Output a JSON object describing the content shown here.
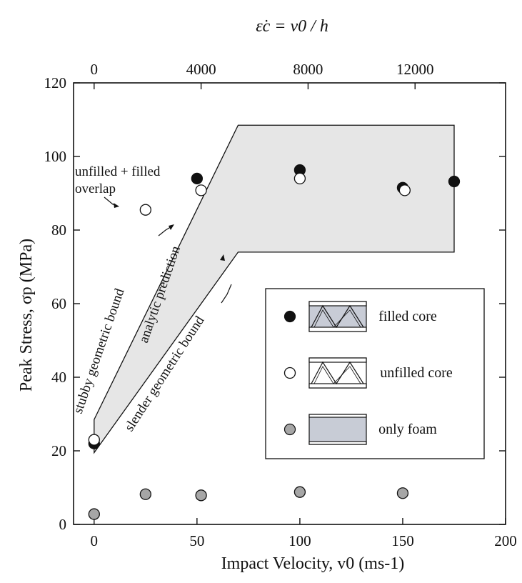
{
  "chart_data": {
    "type": "scatter",
    "xlabel": "Impact Velocity, v0 (ms-1)",
    "ylabel": "Peak Stress, σp (MPa)",
    "top_axis_label": "ε̇c = v0 / h",
    "xlim": [
      -10,
      200
    ],
    "ylim": [
      0,
      120
    ],
    "x_ticks": [
      0,
      50,
      100,
      150,
      200
    ],
    "y_ticks": [
      0,
      20,
      40,
      60,
      80,
      100,
      120
    ],
    "top_ticks": [
      {
        "label": "0",
        "x": 0
      },
      {
        "label": "4000",
        "x": 52
      },
      {
        "label": "8000",
        "x": 104
      },
      {
        "label": "12000",
        "x": 156
      }
    ],
    "series": [
      {
        "name": "filled core",
        "marker": "filled",
        "color": "#111111",
        "points": [
          [
            0,
            22
          ],
          [
            50,
            94
          ],
          [
            100,
            96.3
          ],
          [
            150,
            91.5
          ],
          [
            175,
            93.2
          ]
        ]
      },
      {
        "name": "unfilled core",
        "marker": "open",
        "color": "#ffffff",
        "points": [
          [
            0,
            23
          ],
          [
            25,
            85.5
          ],
          [
            52,
            90.8
          ],
          [
            100,
            94
          ],
          [
            151,
            90.8
          ]
        ]
      },
      {
        "name": "only foam",
        "marker": "gray",
        "color": "#a6a6a6",
        "points": [
          [
            0,
            2.8
          ],
          [
            25,
            8.2
          ],
          [
            52,
            7.9
          ],
          [
            100,
            8.8
          ],
          [
            150,
            8.5
          ]
        ]
      }
    ],
    "prediction_band": {
      "upper": [
        [
          0,
          28.5
        ],
        [
          70,
          108.5
        ],
        [
          175,
          108.5
        ]
      ],
      "lower": [
        [
          0,
          19.5
        ],
        [
          70,
          74
        ],
        [
          175,
          74
        ]
      ],
      "fill": "#e6e6e6"
    },
    "annotations": {
      "overlap_line1": "unfilled + filled",
      "overlap_line2": "overlap",
      "stubby": "stubby geometric bound",
      "analytic": "analytic prediction",
      "slender": "slender geometric bound"
    },
    "legend": {
      "placement": "lower-right",
      "entries": [
        "filled core",
        "unfilled core",
        "only foam"
      ]
    }
  }
}
